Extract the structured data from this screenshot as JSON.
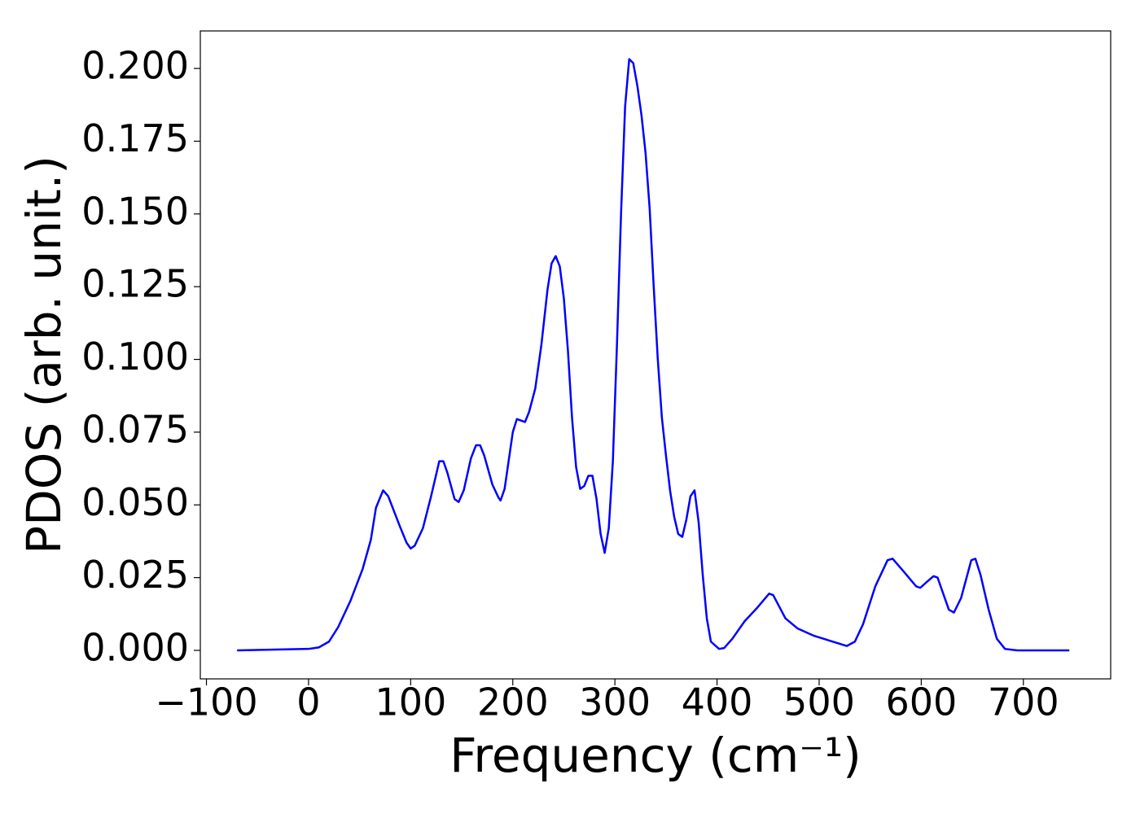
{
  "chart_data": {
    "type": "line",
    "x_label": "Frequency (cm⁻¹)",
    "y_label": "PDOS (arb. unit.)",
    "xlim": [
      -106,
      785.5
    ],
    "ylim": [
      -0.0098,
      0.2129
    ],
    "xticks": [
      {
        "value": -100,
        "label": "−100"
      },
      0,
      100,
      200,
      300,
      400,
      500,
      600,
      700
    ],
    "yticks": [
      {
        "value": 0,
        "label": "0.000"
      },
      {
        "value": 0.025,
        "label": "0.025"
      },
      {
        "value": 0.05,
        "label": "0.050"
      },
      {
        "value": 0.075,
        "label": "0.075"
      },
      {
        "value": 0.1,
        "label": "0.100"
      },
      {
        "value": 0.125,
        "label": "0.125"
      },
      {
        "value": 0.15,
        "label": "0.150"
      },
      {
        "value": 0.175,
        "label": "0.175"
      },
      {
        "value": 0.2,
        "label": "0.200"
      }
    ],
    "grid": false,
    "series": [
      {
        "color": "#0000ff",
        "x": [
          -70,
          0,
          10,
          20,
          29,
          41,
          53,
          61,
          66,
          73,
          78,
          89,
          96,
          100,
          104,
          112,
          120,
          126,
          128,
          132,
          136,
          143,
          147,
          152,
          159,
          164,
          168,
          172,
          180,
          186,
          188,
          192,
          200,
          204,
          212,
          216,
          222,
          228,
          234,
          238,
          242,
          246,
          250,
          254,
          258,
          262,
          266,
          270,
          274,
          278,
          282,
          286,
          290,
          294,
          298,
          302,
          306,
          310,
          314,
          318,
          322,
          326,
          330,
          334,
          338,
          342,
          346,
          350,
          354,
          358,
          362,
          366,
          370,
          374,
          378,
          382,
          386,
          390,
          394,
          402,
          407,
          415,
          427,
          439,
          451,
          455,
          467,
          479,
          495,
          527,
          535,
          543,
          555,
          567,
          572,
          583,
          595,
          599,
          607,
          612,
          616,
          627,
          632,
          639,
          649,
          653,
          658,
          666,
          674,
          682,
          694,
          745
        ],
        "values": [
          0,
          0.0005,
          0.001,
          0.003,
          0.008,
          0.017,
          0.028,
          0.038,
          0.049,
          0.055,
          0.053,
          0.043,
          0.037,
          0.035,
          0.036,
          0.042,
          0.053,
          0.062,
          0.065,
          0.065,
          0.061,
          0.052,
          0.051,
          0.055,
          0.066,
          0.0705,
          0.0705,
          0.067,
          0.057,
          0.0525,
          0.0515,
          0.0555,
          0.075,
          0.0795,
          0.0785,
          0.082,
          0.09,
          0.105,
          0.124,
          0.133,
          0.1355,
          0.132,
          0.121,
          0.103,
          0.08,
          0.063,
          0.0555,
          0.0565,
          0.06,
          0.06,
          0.052,
          0.04,
          0.0335,
          0.042,
          0.065,
          0.105,
          0.15,
          0.187,
          0.2032,
          0.2018,
          0.194,
          0.184,
          0.171,
          0.152,
          0.125,
          0.1,
          0.08,
          0.067,
          0.055,
          0.046,
          0.04,
          0.039,
          0.045,
          0.053,
          0.055,
          0.044,
          0.026,
          0.011,
          0.003,
          0.0005,
          0.0008,
          0.004,
          0.01,
          0.0145,
          0.0195,
          0.019,
          0.011,
          0.0075,
          0.005,
          0.0015,
          0.003,
          0.009,
          0.022,
          0.031,
          0.0315,
          0.027,
          0.022,
          0.0215,
          0.024,
          0.0255,
          0.025,
          0.014,
          0.013,
          0.018,
          0.031,
          0.0315,
          0.026,
          0.014,
          0.004,
          0.0005,
          0,
          0
        ]
      }
    ]
  }
}
